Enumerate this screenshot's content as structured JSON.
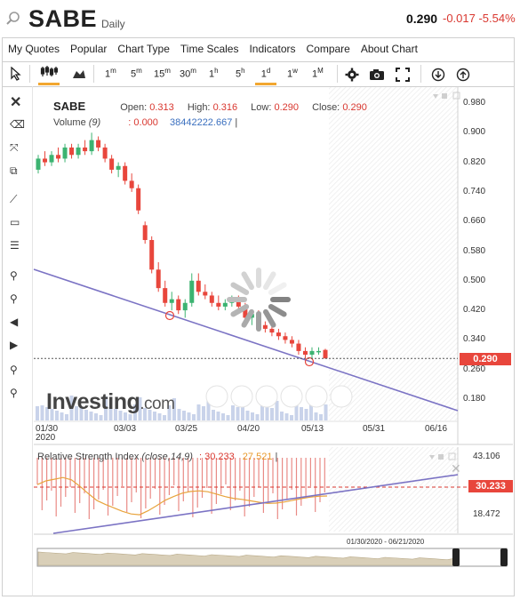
{
  "header": {
    "symbol": "SABE",
    "period": "Daily",
    "price": "0.290",
    "change": "-0.017 -5.54%"
  },
  "menu": [
    "My Quotes",
    "Popular",
    "Chart Type",
    "Time Scales",
    "Indicators",
    "Compare",
    "About Chart"
  ],
  "toolbar": {
    "intervals": [
      "1m",
      "5m",
      "15m",
      "30m",
      "1h",
      "5h",
      "1d",
      "1w",
      "1M"
    ],
    "active_interval": "1d"
  },
  "legend": {
    "symbol": "SABE",
    "open_label": "Open:",
    "open": "0.313",
    "high_label": "High:",
    "high": "0.316",
    "low_label": "Low:",
    "low": "0.290",
    "close_label": "Close:",
    "close": "0.290",
    "volume_label": "Volume",
    "volume_period": "(9)",
    "volume_value": ": 0.000",
    "volume_ma": "38442222.667",
    "volume_sep": "|"
  },
  "rsi_legend": {
    "name": "Relative Strength Index",
    "params": "(close,14,9)",
    "value": ": 30.233",
    "signal": "27.521",
    "sep": "|"
  },
  "logo": {
    "main": "Investing",
    "suffix": ".com"
  },
  "navigator": {
    "range": "01/30/2020 - 06/21/2020"
  },
  "price_tag": "0.290",
  "rsi_tag": "30.233",
  "colors": {
    "up": "#3cb371",
    "down": "#e8463c",
    "trendline": "#7b73c4",
    "rsi_ma": "#e8a33c",
    "accent": "#f2a730"
  },
  "chart_data": [
    {
      "type": "candlestick",
      "ylim": [
        0.18,
        0.98
      ],
      "y_ticks": [
        "0.980",
        "0.900",
        "0.820",
        "0.740",
        "0.660",
        "0.580",
        "0.500",
        "0.420",
        "0.340",
        "0.260",
        "0.180"
      ],
      "x_ticks": [
        "01/30\n2020",
        "03/03",
        "03/25",
        "04/20",
        "05/13",
        "05/31",
        "06/16"
      ],
      "last_price": 0.29,
      "candles": [
        {
          "o": 0.8,
          "h": 0.84,
          "l": 0.79,
          "c": 0.83
        },
        {
          "o": 0.83,
          "h": 0.85,
          "l": 0.81,
          "c": 0.82
        },
        {
          "o": 0.82,
          "h": 0.85,
          "l": 0.81,
          "c": 0.84
        },
        {
          "o": 0.84,
          "h": 0.86,
          "l": 0.82,
          "c": 0.83
        },
        {
          "o": 0.83,
          "h": 0.87,
          "l": 0.82,
          "c": 0.86
        },
        {
          "o": 0.86,
          "h": 0.87,
          "l": 0.83,
          "c": 0.84
        },
        {
          "o": 0.84,
          "h": 0.87,
          "l": 0.83,
          "c": 0.86
        },
        {
          "o": 0.86,
          "h": 0.88,
          "l": 0.84,
          "c": 0.85
        },
        {
          "o": 0.85,
          "h": 0.9,
          "l": 0.84,
          "c": 0.88
        },
        {
          "o": 0.88,
          "h": 0.89,
          "l": 0.85,
          "c": 0.86
        },
        {
          "o": 0.86,
          "h": 0.87,
          "l": 0.82,
          "c": 0.83
        },
        {
          "o": 0.83,
          "h": 0.84,
          "l": 0.79,
          "c": 0.8
        },
        {
          "o": 0.8,
          "h": 0.82,
          "l": 0.78,
          "c": 0.81
        },
        {
          "o": 0.81,
          "h": 0.82,
          "l": 0.76,
          "c": 0.77
        },
        {
          "o": 0.77,
          "h": 0.79,
          "l": 0.74,
          "c": 0.75
        },
        {
          "o": 0.75,
          "h": 0.76,
          "l": 0.68,
          "c": 0.69
        },
        {
          "o": 0.65,
          "h": 0.66,
          "l": 0.6,
          "c": 0.61
        },
        {
          "o": 0.61,
          "h": 0.62,
          "l": 0.52,
          "c": 0.53
        },
        {
          "o": 0.53,
          "h": 0.55,
          "l": 0.47,
          "c": 0.48
        },
        {
          "o": 0.48,
          "h": 0.5,
          "l": 0.43,
          "c": 0.44
        },
        {
          "o": 0.44,
          "h": 0.47,
          "l": 0.42,
          "c": 0.45
        },
        {
          "o": 0.45,
          "h": 0.46,
          "l": 0.41,
          "c": 0.42
        },
        {
          "o": 0.42,
          "h": 0.45,
          "l": 0.4,
          "c": 0.44
        },
        {
          "o": 0.44,
          "h": 0.52,
          "l": 0.43,
          "c": 0.5
        },
        {
          "o": 0.5,
          "h": 0.52,
          "l": 0.46,
          "c": 0.47
        },
        {
          "o": 0.47,
          "h": 0.49,
          "l": 0.45,
          "c": 0.46
        },
        {
          "o": 0.46,
          "h": 0.47,
          "l": 0.43,
          "c": 0.44
        },
        {
          "o": 0.44,
          "h": 0.46,
          "l": 0.42,
          "c": 0.43
        },
        {
          "o": 0.43,
          "h": 0.45,
          "l": 0.42,
          "c": 0.44
        },
        {
          "o": 0.44,
          "h": 0.46,
          "l": 0.43,
          "c": 0.45
        },
        {
          "o": 0.45,
          "h": 0.46,
          "l": 0.42,
          "c": 0.43
        },
        {
          "o": 0.43,
          "h": 0.44,
          "l": 0.39,
          "c": 0.4
        },
        {
          "o": 0.4,
          "h": 0.42,
          "l": 0.38,
          "c": 0.41
        },
        {
          "o": 0.41,
          "h": 0.42,
          "l": 0.37,
          "c": 0.38
        },
        {
          "o": 0.38,
          "h": 0.39,
          "l": 0.36,
          "c": 0.37
        },
        {
          "o": 0.37,
          "h": 0.38,
          "l": 0.35,
          "c": 0.36
        },
        {
          "o": 0.36,
          "h": 0.37,
          "l": 0.34,
          "c": 0.35
        },
        {
          "o": 0.35,
          "h": 0.36,
          "l": 0.33,
          "c": 0.34
        },
        {
          "o": 0.34,
          "h": 0.35,
          "l": 0.32,
          "c": 0.33
        },
        {
          "o": 0.33,
          "h": 0.34,
          "l": 0.3,
          "c": 0.31
        },
        {
          "o": 0.31,
          "h": 0.32,
          "l": 0.29,
          "c": 0.3
        },
        {
          "o": 0.3,
          "h": 0.32,
          "l": 0.29,
          "c": 0.31
        },
        {
          "o": 0.31,
          "h": 0.32,
          "l": 0.3,
          "c": 0.31
        },
        {
          "o": 0.313,
          "h": 0.316,
          "l": 0.29,
          "c": 0.29
        }
      ],
      "trendline": {
        "from": {
          "x_frac": 0.0,
          "y": 0.53
        },
        "to": {
          "x_frac": 1.0,
          "y": 0.18
        }
      }
    },
    {
      "type": "line",
      "title": "Relative Strength Index",
      "ylim": [
        15,
        45
      ],
      "y_ticks": [
        "43.106",
        "18.472"
      ],
      "reference_level": 30.233,
      "rsi_ma_values": [
        31.5,
        32.8,
        33.4,
        34.0,
        33.2,
        30.9,
        28.3,
        25.9,
        24.5,
        23.3,
        22.1,
        21.2,
        20.9,
        22.3,
        24.1,
        26.0,
        27.3,
        28.5,
        29.1,
        29.3,
        29.0,
        28.2,
        27.3,
        26.7,
        26.3,
        25.8,
        25.3,
        24.9,
        25.0,
        25.4,
        26.0,
        26.6,
        27.1,
        27.4,
        27.5
      ]
    }
  ]
}
